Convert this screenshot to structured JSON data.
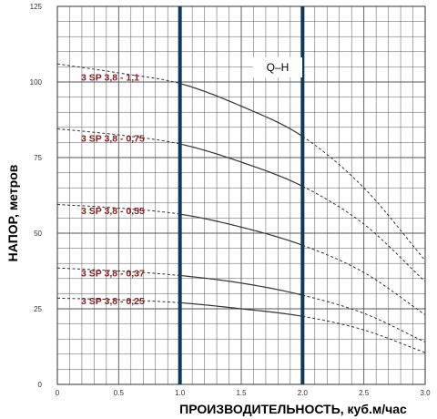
{
  "chart_data": {
    "type": "line",
    "xlabel": "ПРОИЗВОДИТЕЛЬНОСТЬ, куб.м/час",
    "ylabel": "НАПОР, метров",
    "xlim": [
      0,
      3.0
    ],
    "ylim": [
      0,
      125
    ],
    "x_ticks": [
      "0",
      "0.5",
      "1.0",
      "1.5",
      "2.0",
      "2.5",
      "3.0"
    ],
    "y_ticks": [
      "0",
      "25",
      "50",
      "75",
      "100",
      "125"
    ],
    "grid": true,
    "annotation": "Q–H",
    "working_range": [
      1.0,
      2.0
    ],
    "colors": {
      "curve": "#333333",
      "label": "#8b1a1a",
      "band": "#0d3a5c",
      "grid": "#555555"
    },
    "series": [
      {
        "name": "3 SP 3,8 - 1,1",
        "x": [
          0,
          0.5,
          1.0,
          1.5,
          2.0,
          2.5,
          3.0
        ],
        "y": [
          106,
          103,
          99.5,
          92,
          82,
          65,
          41
        ]
      },
      {
        "name": "3 SP 3,8 - 0,75",
        "x": [
          0,
          0.5,
          1.0,
          1.5,
          2.0,
          2.5,
          3.0
        ],
        "y": [
          84.5,
          82.5,
          79.5,
          73.5,
          65.5,
          53,
          34
        ]
      },
      {
        "name": "3 SP 3,8 - 0,55",
        "x": [
          0,
          0.5,
          1.0,
          1.5,
          2.0,
          2.5,
          3.0
        ],
        "y": [
          59.5,
          58.3,
          56.3,
          52,
          46,
          37,
          23
        ]
      },
      {
        "name": "3 SP 3,8 - 0,37",
        "x": [
          0,
          0.5,
          1.0,
          1.5,
          2.0,
          2.5,
          3.0
        ],
        "y": [
          38.5,
          37.5,
          36,
          33.5,
          29.5,
          23.5,
          14
        ]
      },
      {
        "name": "3 SP 3,8 - 0,25",
        "x": [
          0,
          0.5,
          1.0,
          1.5,
          2.0,
          2.5,
          3.0
        ],
        "y": [
          28.5,
          28,
          27,
          25,
          22.5,
          18,
          10.5
        ]
      }
    ]
  }
}
